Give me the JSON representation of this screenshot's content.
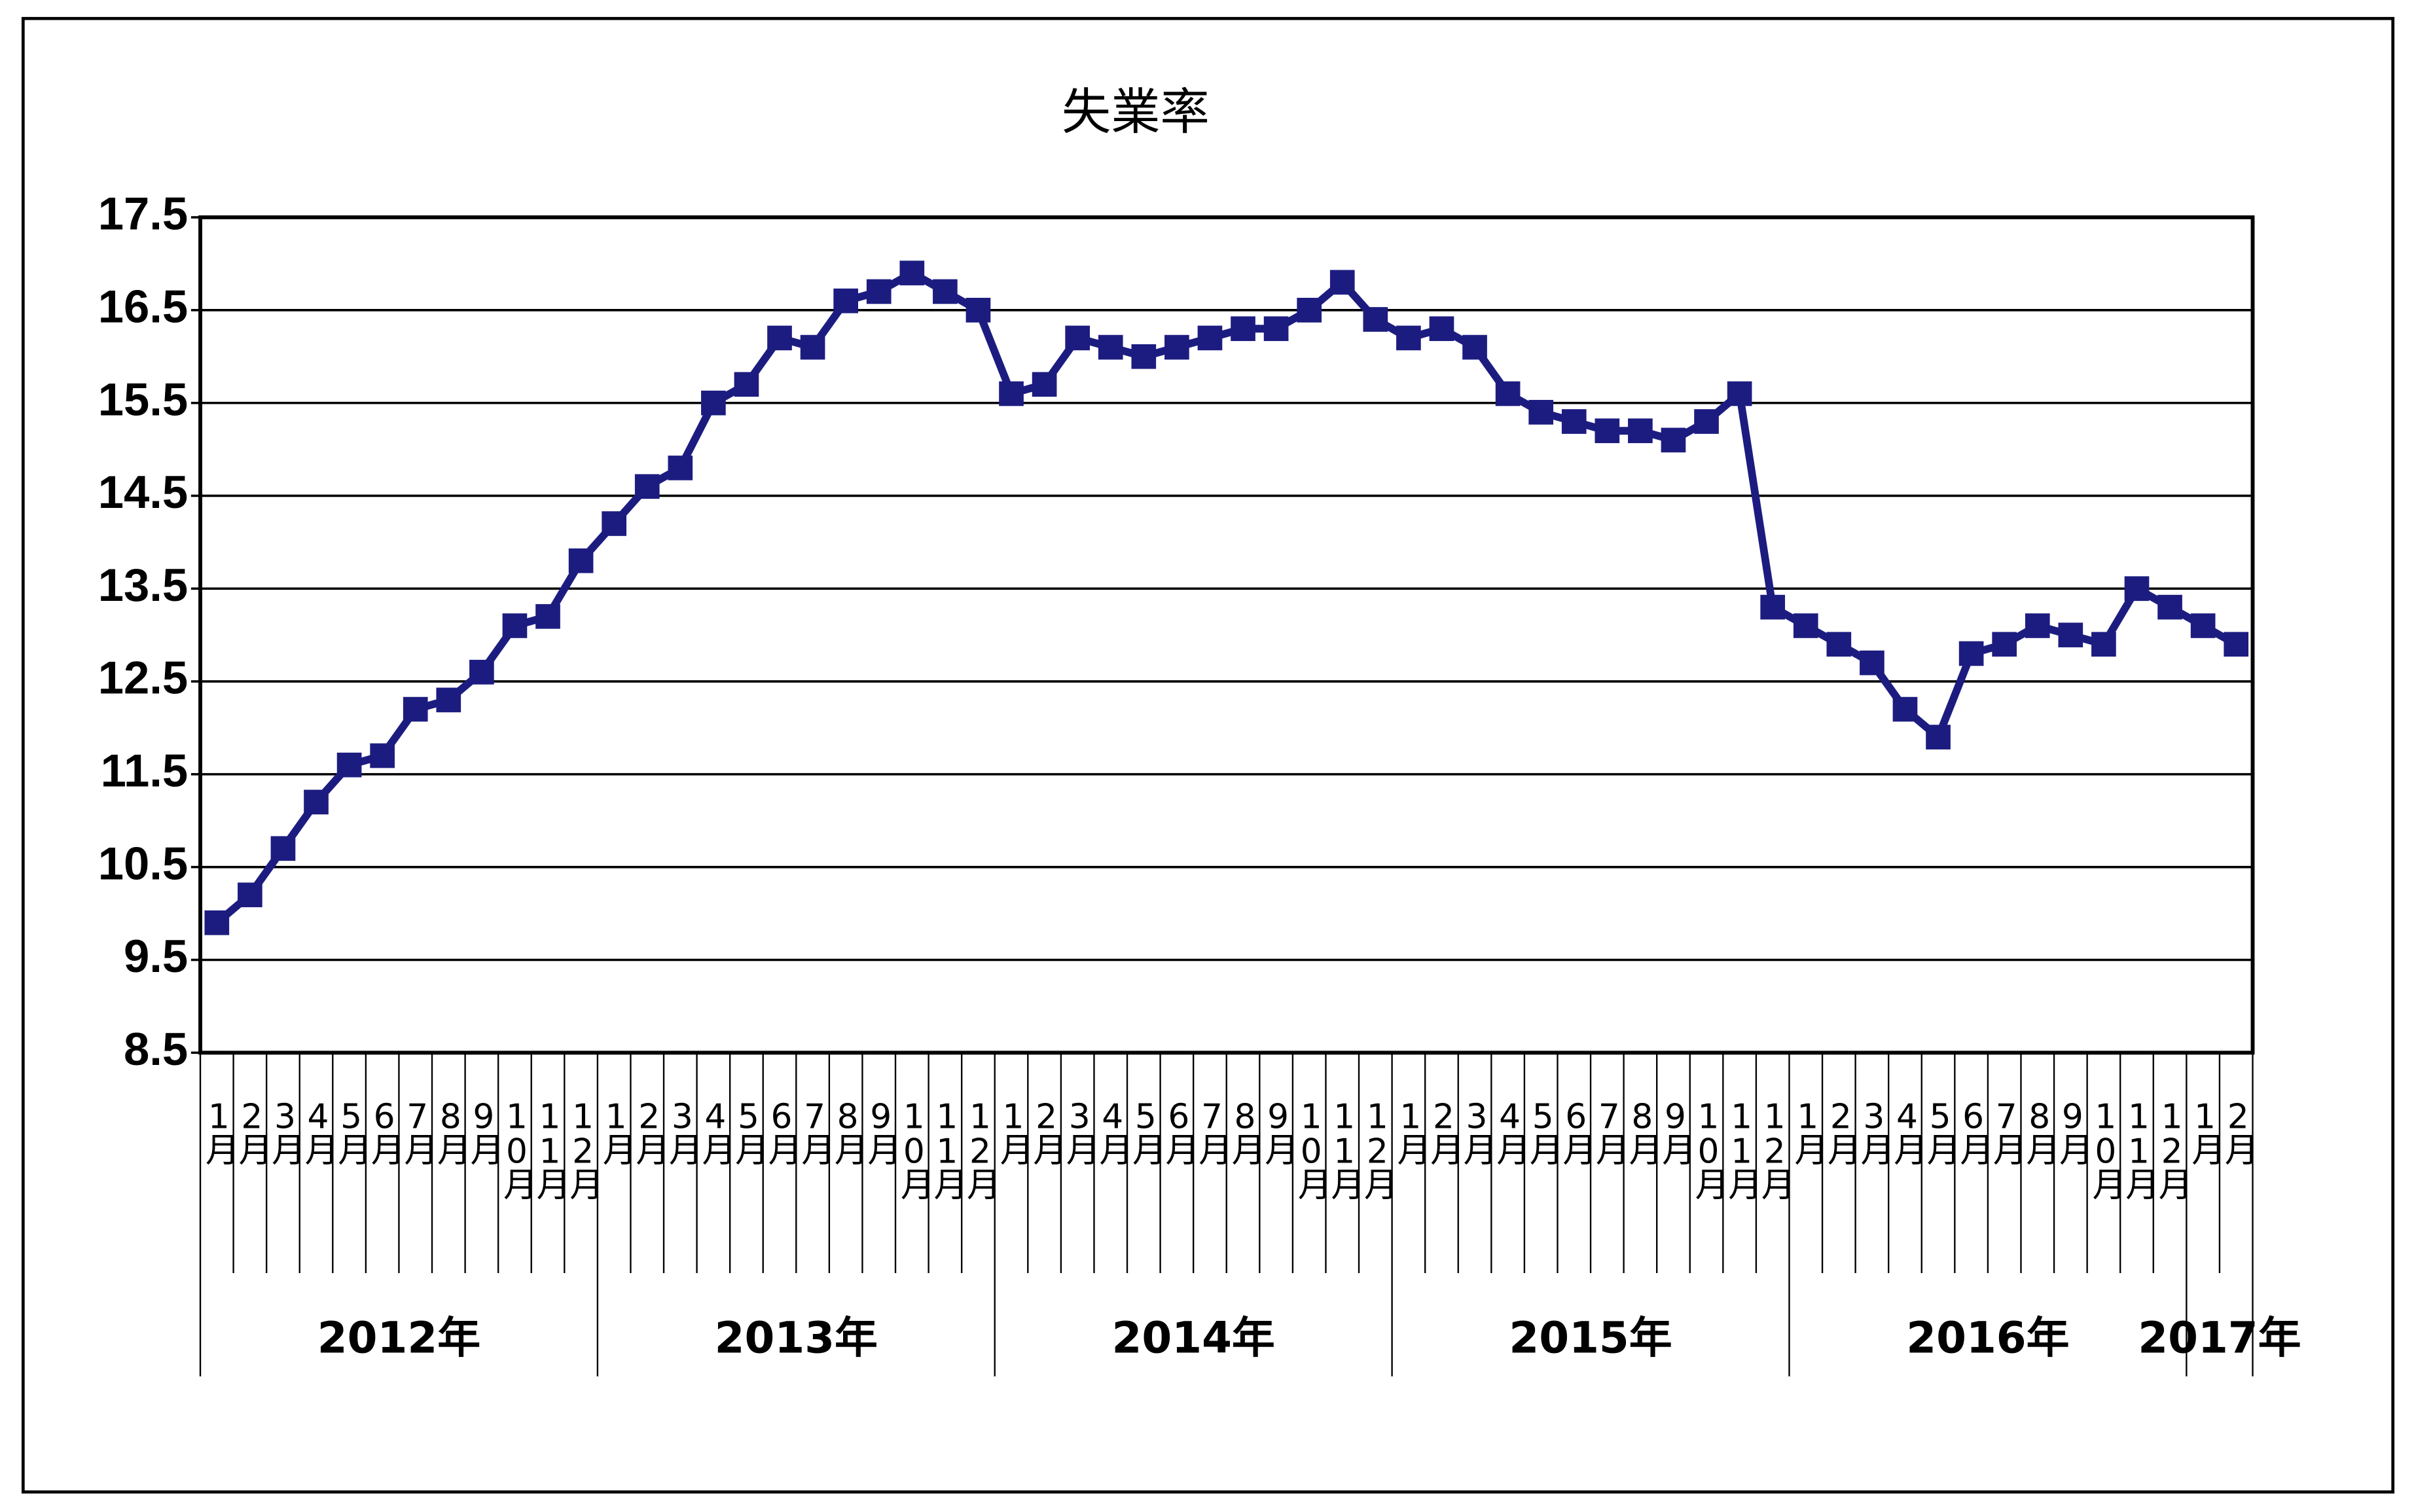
{
  "chart_data": {
    "type": "line",
    "title": "失業率",
    "categories": [
      "1月",
      "2月",
      "3月",
      "4月",
      "5月",
      "6月",
      "7月",
      "8月",
      "9月",
      "10月",
      "11月",
      "12月",
      "1月",
      "2月",
      "3月",
      "4月",
      "5月",
      "6月",
      "7月",
      "8月",
      "9月",
      "10月",
      "11月",
      "12月",
      "1月",
      "2月",
      "3月",
      "4月",
      "5月",
      "6月",
      "7月",
      "8月",
      "9月",
      "10月",
      "11月",
      "12月",
      "1月",
      "2月",
      "3月",
      "4月",
      "5月",
      "6月",
      "7月",
      "8月",
      "9月",
      "10月",
      "11月",
      "12月",
      "1月",
      "2月",
      "3月",
      "4月",
      "5月",
      "6月",
      "7月",
      "8月",
      "9月",
      "10月",
      "11月",
      "12月",
      "1月",
      "2月"
    ],
    "year_labels": [
      "2012年",
      "2013年",
      "2014年",
      "2015年",
      "2016年",
      "2017年"
    ],
    "series": [
      {
        "color": "#1c1c80",
        "values": [
          9.9,
          10.2,
          10.7,
          11.2,
          11.6,
          11.7,
          12.2,
          12.3,
          12.6,
          13.1,
          13.2,
          13.8,
          14.2,
          14.6,
          14.8,
          15.5,
          15.7,
          16.2,
          16.1,
          16.6,
          16.7,
          16.9,
          16.7,
          16.5,
          15.6,
          15.7,
          16.2,
          16.1,
          16.0,
          16.1,
          16.2,
          16.3,
          16.3,
          16.5,
          16.8,
          16.4,
          16.2,
          16.3,
          16.1,
          15.6,
          15.4,
          15.3,
          15.2,
          15.2,
          15.1,
          15.3,
          15.6,
          13.3,
          13.1,
          12.9,
          12.7,
          12.2,
          11.9,
          12.8,
          12.9,
          13.1,
          13.0,
          12.9,
          13.5,
          13.3,
          13.1,
          12.9
        ]
      }
    ],
    "ylim": [
      8.5,
      17.5
    ],
    "yticks": [
      8.5,
      9.5,
      10.5,
      11.5,
      12.5,
      13.5,
      14.5,
      15.5,
      16.5,
      17.5
    ],
    "grid": true
  }
}
